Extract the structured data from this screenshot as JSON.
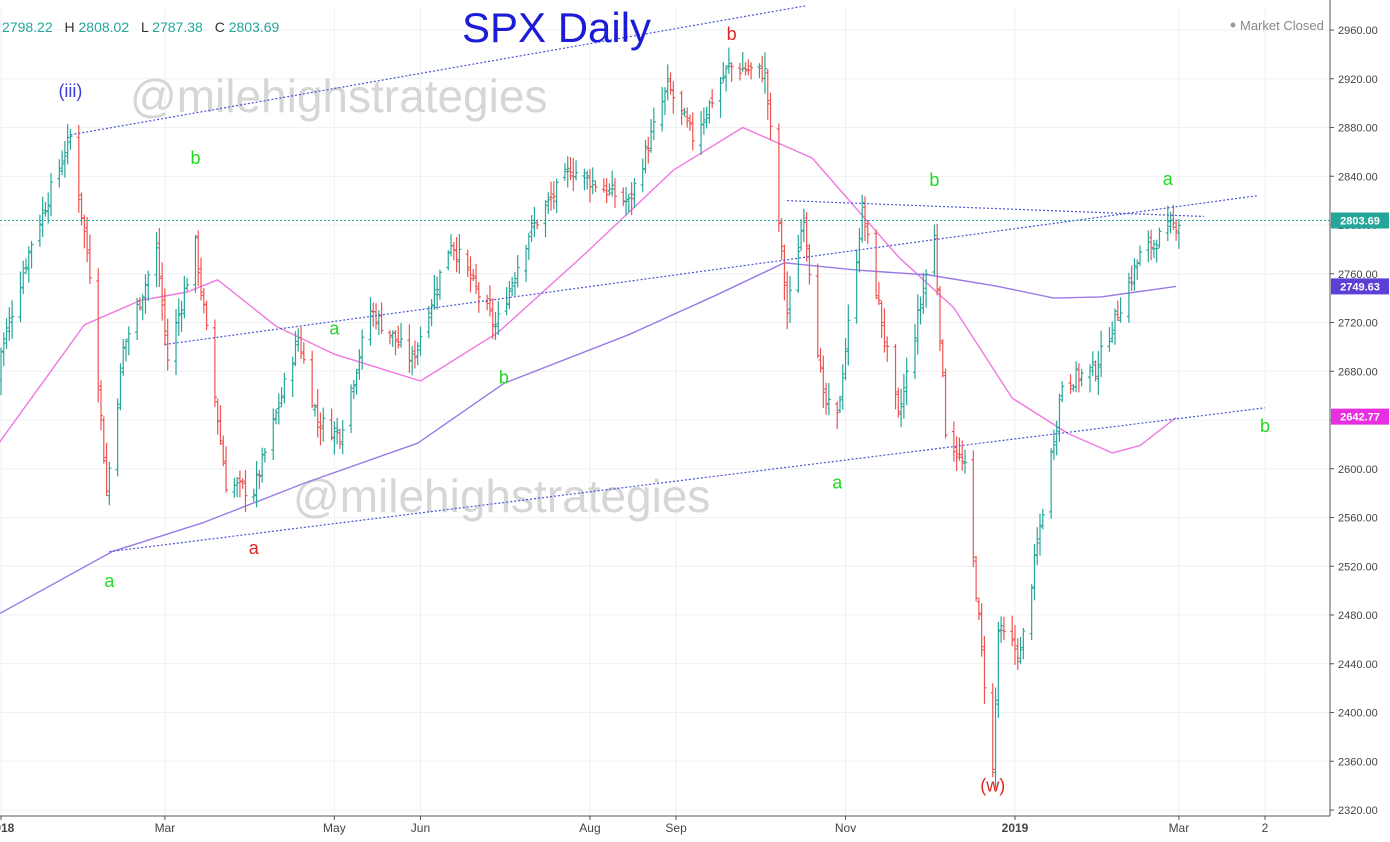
{
  "ohlc": {
    "open_label": "O",
    "open": "2798.22",
    "high_label": "H",
    "high": "2808.02",
    "low_label": "L",
    "low": "2787.38",
    "close_label": "C",
    "close": "2803.69"
  },
  "title": "SPX Daily",
  "status": "Market Closed",
  "watermark": "@milehighstrategies",
  "colors": {
    "up": "#26a69a",
    "down": "#ef5350",
    "ma_fast": "#f078e0",
    "ma_slow": "#9a7ae6",
    "trend": "#4b55d6",
    "title": "#1c1cd8",
    "label_green": "#22d822",
    "label_red": "#e02424",
    "label_blue": "#3c3cdc",
    "price_line": "#26a69a"
  },
  "chart_data": {
    "type": "ohlc",
    "title": "SPX Daily",
    "y_axis": {
      "min": 2320,
      "max": 2960,
      "ticks": [
        "2960.00",
        "2920.00",
        "2880.00",
        "2840.00",
        "2800.00",
        "2760.00",
        "2720.00",
        "2680.00",
        "2640.00",
        "2600.00",
        "2560.00",
        "2520.00",
        "2480.00",
        "2440.00",
        "2400.00",
        "2360.00",
        "2320.00"
      ]
    },
    "x_axis": {
      "ticks": [
        "2018",
        "Mar",
        "May",
        "Jun",
        "Aug",
        "Sep",
        "Nov",
        "2019",
        "Mar",
        "2"
      ]
    },
    "price_labels": [
      {
        "text": "2803.69",
        "value": 2803.69,
        "color": "#26a69a"
      },
      {
        "text": "2749.63",
        "value": 2749.63,
        "color": "#5b3fd6"
      },
      {
        "text": "2642.77",
        "value": 2642.77,
        "color": "#e82ee0"
      }
    ],
    "wave_labels": [
      {
        "text": "(iii)",
        "date": "2018-01-26",
        "value": 2905,
        "color": "blue"
      },
      {
        "text": "b",
        "date": "2018-03-12",
        "value": 2850,
        "color": "green"
      },
      {
        "text": "a",
        "date": "2018-02-09",
        "value": 2503,
        "color": "green"
      },
      {
        "text": "a",
        "date": "2018-04-02",
        "value": 2530,
        "color": "red"
      },
      {
        "text": "a",
        "date": "2018-05-01",
        "value": 2710,
        "color": "green"
      },
      {
        "text": "b",
        "date": "2018-07-01",
        "value": 2670,
        "color": "green"
      },
      {
        "text": "b",
        "date": "2018-09-21",
        "value": 2952,
        "color": "red"
      },
      {
        "text": "a",
        "date": "2018-10-29",
        "value": 2584,
        "color": "green"
      },
      {
        "text": "b",
        "date": "2018-12-03",
        "value": 2832,
        "color": "green"
      },
      {
        "text": "(w)",
        "date": "2018-12-24",
        "value": 2335,
        "color": "red"
      },
      {
        "text": "a",
        "date": "2019-02-25",
        "value": 2833,
        "color": "green"
      },
      {
        "text": "b",
        "date": "2019-04-01",
        "value": 2630,
        "color": "green"
      }
    ]
  }
}
